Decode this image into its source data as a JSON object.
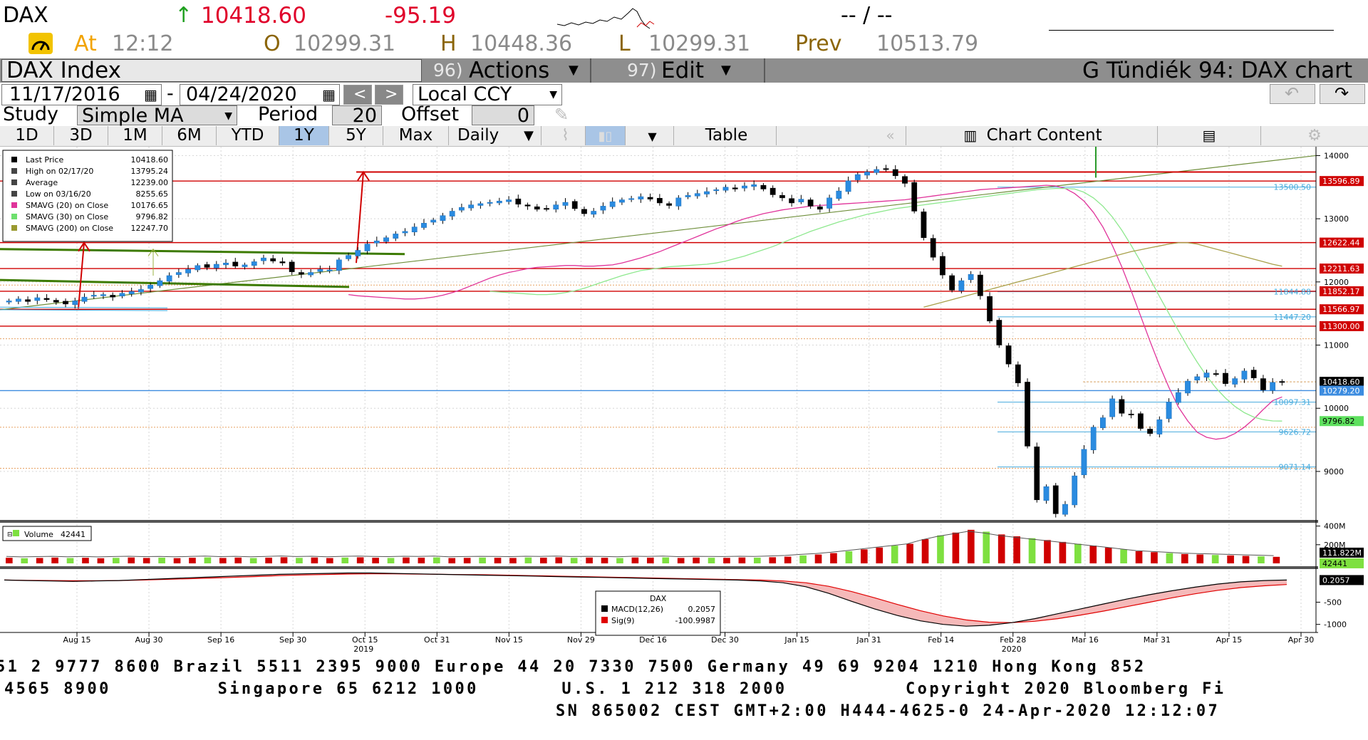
{
  "quote": {
    "ticker": "DAX",
    "last": "10418.60",
    "change": "-95.19",
    "bidask": "-- / --",
    "at_label": "At",
    "time": "12:12",
    "open_label": "O",
    "open": "10299.31",
    "high_label": "H",
    "high": "10448.36",
    "low_label": "L",
    "low": "10299.31",
    "prev_label": "Prev",
    "prev": "10513.79"
  },
  "menubar": {
    "security": "DAX Index",
    "actions_num": "96)",
    "actions": "Actions",
    "edit_num": "97)",
    "edit": "Edit",
    "title": "G Tündiék 94: DAX chart"
  },
  "controls": {
    "start_date": "11/17/2016",
    "date_sep": "-",
    "end_date": "04/24/2020",
    "currency": "Local CCY",
    "study_label": "Study",
    "study": "Simple MA",
    "period_label": "Period",
    "period": "20",
    "offset_label": "Offset",
    "offset": "0"
  },
  "tabs": {
    "ranges": [
      "1D",
      "3D",
      "1M",
      "6M",
      "YTD",
      "1Y",
      "5Y",
      "Max"
    ],
    "selected": "1Y",
    "frequency": "Daily",
    "table": "Table",
    "chart_content": "Chart Content"
  },
  "legend": {
    "rows": [
      {
        "label": "Last Price",
        "value": "10418.60",
        "color": "#000000"
      },
      {
        "label": "High on 02/17/20",
        "value": "13795.24",
        "color": "#444444"
      },
      {
        "label": "Average",
        "value": "12239.00",
        "color": "#444444"
      },
      {
        "label": "Low on 03/16/20",
        "value": "8255.65",
        "color": "#444444"
      },
      {
        "label": "SMAVG (20)  on Close",
        "value": "10176.65",
        "color": "#e0339a"
      },
      {
        "label": "SMAVG (30)  on Close",
        "value": "9796.82",
        "color": "#6ee06e"
      },
      {
        "label": "SMAVG (200)  on Close",
        "value": "12247.70",
        "color": "#9a9a30"
      }
    ],
    "volume_label": "Volume",
    "volume_value": "42441",
    "macd_title": "DAX",
    "macd_label": "MACD(12,26)",
    "macd_value": "0.2057",
    "sig_label": "Sig(9)",
    "sig_value": "-100.9987"
  },
  "chart_data": {
    "type": "candlestick",
    "price_axis": {
      "min": 8255,
      "max": 14000,
      "ticks": [
        "14000",
        "13000",
        "12000",
        "11000",
        "10000",
        "9000"
      ]
    },
    "x_ticks": [
      "Aug 15",
      "Aug 30",
      "Sep 16",
      "Sep 30",
      "Oct 15",
      "Oct 31",
      "Nov 15",
      "Nov 29",
      "Dec 16",
      "Dec 30",
      "Jan 15",
      "Jan 31",
      "Feb 14",
      "Feb 28",
      "Mar 16",
      "Mar 31",
      "Apr 15",
      "Apr 30"
    ],
    "year_labels": [
      {
        "text": "2019",
        "under": "Oct 15"
      },
      {
        "text": "2020",
        "under": "Feb 28"
      }
    ],
    "volume_ticks": [
      "400M",
      "200M"
    ],
    "macd_ticks": [
      "-500",
      "-1000"
    ],
    "right_labels": [
      {
        "text": "13596.89",
        "style": "red"
      },
      {
        "text": "13500.50",
        "style": "cyan"
      },
      {
        "text": "12622.44",
        "style": "red"
      },
      {
        "text": "12211.63",
        "style": "red"
      },
      {
        "text": "11844.88",
        "style": "cyan"
      },
      {
        "text": "11852.17",
        "style": "red"
      },
      {
        "text": "11566.97",
        "style": "red"
      },
      {
        "text": "11447.20",
        "style": "cyan"
      },
      {
        "text": "11300.00",
        "style": "red"
      },
      {
        "text": "10418.60",
        "style": "black"
      },
      {
        "text": "10279.20",
        "style": "blue"
      },
      {
        "text": "10097.31",
        "style": "cyan"
      },
      {
        "text": "9796.82",
        "style": "green"
      },
      {
        "text": "9626.72",
        "style": "cyan"
      },
      {
        "text": "9071.14",
        "style": "cyan"
      }
    ],
    "volume_right_labels": [
      "111.822M",
      "42441"
    ],
    "macd_right_label": "0.2057",
    "series": [
      {
        "name": "Last Price",
        "values": [
          11700,
          11730,
          11690,
          11750,
          11720,
          11680,
          11650,
          11700,
          11760,
          11790,
          11800,
          11760,
          11820,
          11850,
          11880,
          11950,
          12020,
          12100,
          12150,
          12200,
          12260,
          12230,
          12280,
          12300,
          12250,
          12270,
          12320,
          12380,
          12330,
          12300,
          12160,
          12120,
          12150,
          12200,
          12190,
          12350,
          12420,
          12500,
          12600,
          12650,
          12700,
          12760,
          12800,
          12870,
          12930,
          12980,
          13050,
          13120,
          13180,
          13220,
          13240,
          13260,
          13280,
          13300,
          13230,
          13200,
          13150,
          13160,
          13220,
          13260,
          13160,
          13080,
          13120,
          13200,
          13270,
          13300,
          13320,
          13350,
          13310,
          13250,
          13210,
          13330,
          13370,
          13400,
          13430,
          13460,
          13500,
          13470,
          13520,
          13540,
          13470,
          13380,
          13330,
          13250,
          13310,
          13200,
          13150,
          13330,
          13440,
          13600,
          13700,
          13740,
          13780,
          13790,
          13680,
          13560,
          13120,
          12700,
          12390,
          12110,
          11870,
          12020,
          12120,
          11780,
          11380,
          11000,
          10700,
          10400,
          9400,
          8550,
          8760,
          8330,
          8480,
          8930,
          9350,
          9700,
          9850,
          10150,
          9920,
          9900,
          9680,
          9600,
          9820,
          10100,
          10250,
          10430,
          10500,
          10560,
          10540,
          10390,
          10470,
          10590,
          10480,
          10290,
          10410,
          10418
        ]
      },
      {
        "name": "SMAVG (20)",
        "values": [
          11800,
          11780,
          11770,
          11760,
          11750,
          11740,
          11730,
          11730,
          11740,
          11760,
          11790,
          11830,
          11880,
          11940,
          12000,
          12060,
          12110,
          12150,
          12180,
          12210,
          12230,
          12240,
          12250,
          12260,
          12260,
          12250,
          12250,
          12260,
          12270,
          12300,
          12340,
          12380,
          12430,
          12480,
          12540,
          12600,
          12660,
          12720,
          12780,
          12840,
          12890,
          12950,
          13000,
          13040,
          13080,
          13110,
          13140,
          13160,
          13180,
          13200,
          13210,
          13220,
          13230,
          13240,
          13250,
          13260,
          13270,
          13280,
          13290,
          13300,
          13320,
          13340,
          13360,
          13380,
          13400,
          13420,
          13440,
          13460,
          13470,
          13480,
          13490,
          13500,
          13510,
          13520,
          13530,
          13520,
          13480,
          13400,
          13280,
          13100,
          12870,
          12580,
          12240,
          11860,
          11460,
          11060,
          10680,
          10330,
          10020,
          9800,
          9620,
          9540,
          9510,
          9530,
          9600,
          9700,
          9830,
          9980,
          10120,
          10180
        ]
      },
      {
        "name": "SMAVG (30)",
        "values": [
          11850,
          11840,
          11830,
          11820,
          11810,
          11800,
          11800,
          11810,
          11830,
          11860,
          11900,
          11950,
          12000,
          12050,
          12100,
          12140,
          12180,
          12200,
          12220,
          12240,
          12250,
          12260,
          12270,
          12280,
          12300,
          12330,
          12370,
          12410,
          12460,
          12510,
          12560,
          12620,
          12680,
          12740,
          12800,
          12850,
          12900,
          12950,
          12990,
          13030,
          13070,
          13100,
          13130,
          13160,
          13180,
          13200,
          13220,
          13240,
          13260,
          13280,
          13300,
          13320,
          13340,
          13360,
          13380,
          13400,
          13420,
          13440,
          13460,
          13470,
          13480,
          13480,
          13470,
          13420,
          13330,
          13200,
          13030,
          12820,
          12580,
          12320,
          12050,
          11770,
          11500,
          11230,
          10970,
          10730,
          10510,
          10320,
          10160,
          10030,
          9930,
          9860,
          9820,
          9800,
          9797
        ]
      },
      {
        "name": "SMAVG (200)",
        "values": [
          11600,
          11640,
          11680,
          11720,
          11760,
          11800,
          11840,
          11880,
          11920,
          11960,
          12000,
          12040,
          12080,
          12120,
          12160,
          12200,
          12240,
          12280,
          12320,
          12360,
          12400,
          12440,
          12480,
          12510,
          12540,
          12570,
          12600,
          12620,
          12620,
          12600,
          12560,
          12520,
          12480,
          12440,
          12400,
          12360,
          12320,
          12280,
          12248
        ]
      }
    ],
    "volume_values": [
      60,
      55,
      58,
      62,
      57,
      60,
      55,
      59,
      63,
      58,
      61,
      56,
      60,
      64,
      58,
      62,
      57,
      61,
      66,
      59,
      63,
      57,
      62,
      65,
      60,
      58,
      63,
      61,
      64,
      57,
      59,
      62,
      60,
      58,
      63,
      61,
      65,
      59,
      62,
      60,
      57,
      63,
      61,
      64,
      58,
      62,
      60,
      59,
      63,
      61,
      66,
      72,
      85,
      95,
      110,
      130,
      150,
      170,
      190,
      210,
      260,
      300,
      330,
      360,
      340,
      310,
      290,
      270,
      250,
      230,
      210,
      190,
      170,
      150,
      130,
      120,
      110,
      100,
      95,
      90,
      85,
      80,
      75,
      70
    ],
    "macd": {
      "macd_values": [
        0,
        -10,
        -20,
        -30,
        -20,
        -10,
        10,
        30,
        50,
        70,
        90,
        110,
        130,
        140,
        150,
        160,
        160,
        150,
        140,
        130,
        120,
        110,
        100,
        90,
        80,
        70,
        60,
        50,
        40,
        30,
        20,
        10,
        0,
        -20,
        -60,
        -150,
        -300,
        -480,
        -650,
        -800,
        -920,
        -1000,
        -1040,
        -1020,
        -960,
        -870,
        -760,
        -650,
        -540,
        -430,
        -330,
        -240,
        -160,
        -90,
        -40,
        -10,
        0.2
      ],
      "signal_values": [
        0,
        -5,
        -10,
        -15,
        -15,
        -10,
        0,
        15,
        30,
        45,
        60,
        80,
        100,
        115,
        125,
        135,
        140,
        140,
        135,
        130,
        125,
        120,
        110,
        100,
        90,
        80,
        70,
        60,
        50,
        40,
        30,
        20,
        10,
        0,
        -20,
        -60,
        -140,
        -260,
        -400,
        -550,
        -690,
        -810,
        -900,
        -950,
        -960,
        -930,
        -870,
        -790,
        -700,
        -600,
        -500,
        -400,
        -310,
        -230,
        -170,
        -130,
        -101
      ]
    }
  },
  "footer": {
    "line1": "51 2 9777 8600 Brazil 5511 2395 9000 Europe 44 20 7330 7500 Germany 49 69 9204 1210 Hong Kong 852",
    "line2": "4565 8900         Singapore 65 6212 1000       U.S. 1 212 318 2000          Copyright 2020 Bloomberg Fi",
    "line3": "SN 865002 CEST GMT+2:00 H444-4625-0 24-Apr-2020 12:12:07"
  },
  "colors": {
    "up": "#2a8be0",
    "down": "#000000",
    "red_line": "#d00000",
    "blue_line": "#3c8ce0",
    "cyan_line": "#44aadd",
    "gray_bar": "#8e8e8e"
  }
}
